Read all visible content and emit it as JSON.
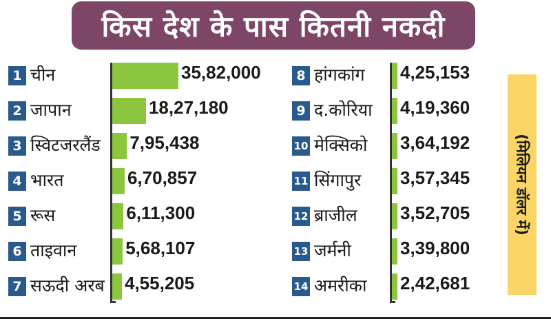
{
  "chart_data": {
    "type": "bar",
    "orientation": "horizontal",
    "title": "किस देश के पास कितनी नकदी",
    "unit_label": "(मिलियन डॉलर में)",
    "categories": [
      "चीन",
      "जापान",
      "स्विटजरलैंड",
      "भारत",
      "रूस",
      "ताइवान",
      "सऊदी अरब",
      "हांगकांग",
      "द.कोरिया",
      "मेक्सिको",
      "सिंगापुर",
      "ब्राजील",
      "जर्मनी",
      "अमरीका"
    ],
    "ranks": [
      "1",
      "2",
      "3",
      "4",
      "5",
      "6",
      "7",
      "8",
      "9",
      "10",
      "11",
      "12",
      "13",
      "14"
    ],
    "values": [
      3582000,
      1827180,
      795438,
      670857,
      611300,
      568107,
      455205,
      425153,
      419360,
      364192,
      357345,
      352705,
      339800,
      242681
    ],
    "value_labels": [
      "35,82,000",
      "18,27,180",
      "7,95,438",
      "6,70,857",
      "6,11,300",
      "5,68,107",
      "4,55,205",
      "4,25,153",
      "4,19,360",
      "3,64,192",
      "3,57,345",
      "3,52,705",
      "3,39,800",
      "2,42,681"
    ],
    "colors": {
      "bar": "#8cc63f",
      "title_bg": "#7d4666",
      "rank_bg": "#2a5a8c",
      "unit_bg": "#fbd667"
    },
    "legend": "none",
    "grid": false
  }
}
